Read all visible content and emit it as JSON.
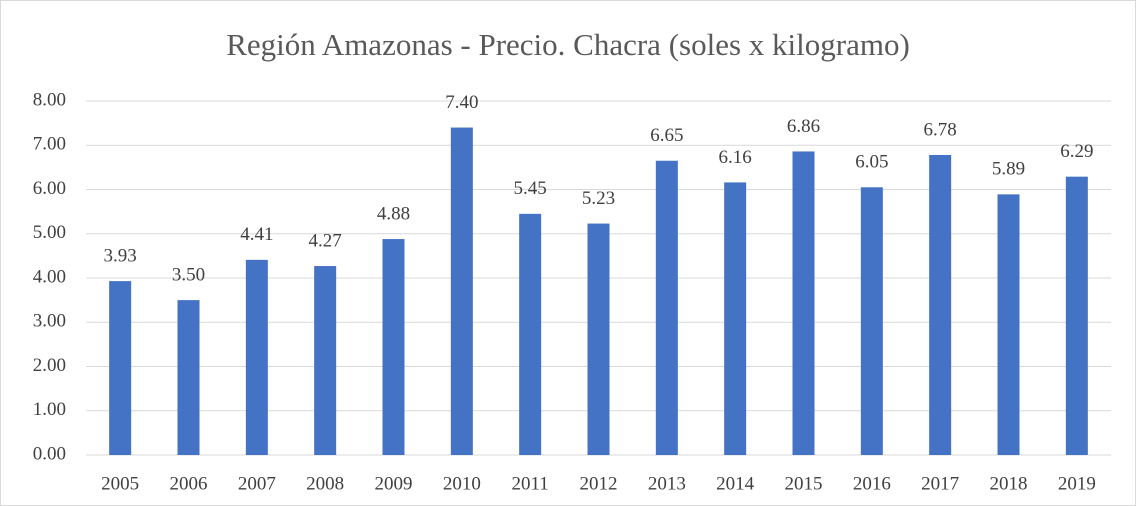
{
  "chart_data": {
    "type": "bar",
    "title": "Región Amazonas - Precio. Chacra (soles x kilogramo)",
    "categories": [
      "2005",
      "2006",
      "2007",
      "2008",
      "2009",
      "2010",
      "2011",
      "2012",
      "2013",
      "2014",
      "2015",
      "2016",
      "2017",
      "2018",
      "2019"
    ],
    "values": [
      3.93,
      3.5,
      4.41,
      4.27,
      4.88,
      7.4,
      5.45,
      5.23,
      6.65,
      6.16,
      6.86,
      6.05,
      6.78,
      5.89,
      6.29
    ],
    "value_labels": [
      "3.93",
      "3.50",
      "4.41",
      "4.27",
      "4.88",
      "7.40",
      "5.45",
      "5.23",
      "6.65",
      "6.16",
      "6.86",
      "6.05",
      "6.78",
      "5.89",
      "6.29"
    ],
    "color": "#4472c4",
    "ylim": [
      0,
      8
    ],
    "yticks": [
      {
        "value": 0,
        "label": "0.00"
      },
      {
        "value": 1,
        "label": "1.00"
      },
      {
        "value": 2,
        "label": "2.00"
      },
      {
        "value": 3,
        "label": "3.00"
      },
      {
        "value": 4,
        "label": "4.00"
      },
      {
        "value": 5,
        "label": "5.00"
      },
      {
        "value": 6,
        "label": "6.00"
      },
      {
        "value": 7,
        "label": "7.00"
      },
      {
        "value": 8,
        "label": "8.00"
      }
    ],
    "grid": true
  }
}
